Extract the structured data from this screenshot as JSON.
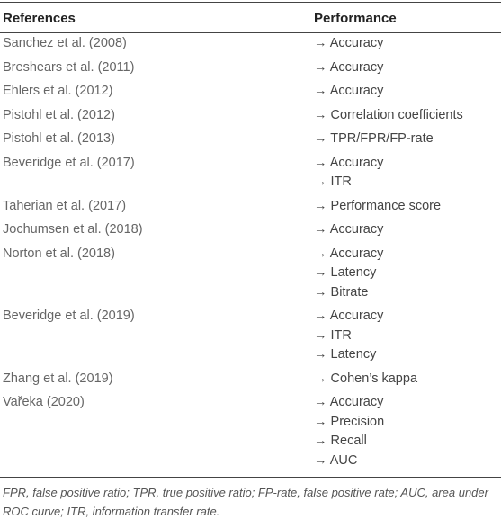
{
  "table": {
    "header": [
      "References",
      "Performance"
    ],
    "rows": [
      [
        "Sanchez et al. (2008)",
        [
          "→ Accuracy"
        ]
      ],
      [
        "Breshears et al. (2011)",
        [
          "→ Accuracy"
        ]
      ],
      [
        "Ehlers et al. (2012)",
        [
          "→ Accuracy"
        ]
      ],
      [
        "Pistohl et al. (2012)",
        [
          "→ Correlation coefficients"
        ]
      ],
      [
        "Pistohl et al. (2013)",
        [
          "→ TPR/FPR/FP-rate"
        ]
      ],
      [
        "Beveridge et al. (2017)",
        [
          "→ Accuracy",
          "→ ITR"
        ]
      ],
      [
        "Taherian et al. (2017)",
        [
          "→ Performance score"
        ]
      ],
      [
        "Jochumsen et al. (2018)",
        [
          "→ Accuracy"
        ]
      ],
      [
        "Norton et al. (2018)",
        [
          "→ Accuracy",
          "→ Latency",
          "→ Bitrate"
        ]
      ],
      [
        "Beveridge et al. (2019)",
        [
          "→ Accuracy",
          "→ ITR",
          "→ Latency"
        ]
      ],
      [
        "Zhang et al. (2019)",
        [
          "→ Cohen’s kappa"
        ]
      ],
      [
        "Vařeka (2020)",
        [
          "→ Accuracy",
          "→ Precision",
          "→ Recall",
          "→ AUC"
        ]
      ]
    ],
    "footnote": "FPR, false positive ratio; TPR, true positive ratio; FP-rate, false positive rate; AUC, area under ROC curve; ITR, information transfer rate."
  }
}
